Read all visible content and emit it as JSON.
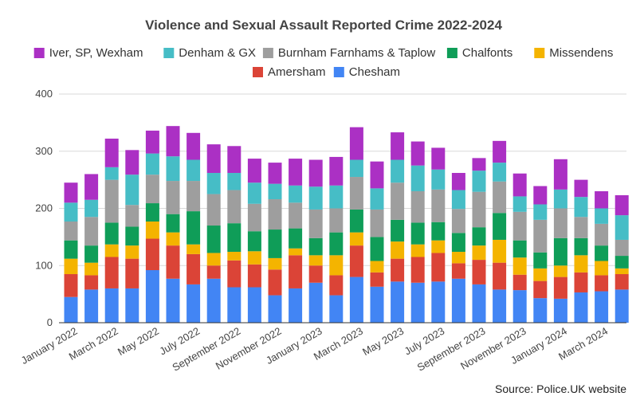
{
  "chart_data": {
    "type": "bar",
    "stacked": true,
    "title": "Violence and Sexual Assault Reported Crime 2022-2024",
    "source": "Source: Police.UK website",
    "ylim": [
      0,
      400
    ],
    "yticks": [
      0,
      100,
      200,
      300,
      400
    ],
    "grid": true,
    "legend_position": "top",
    "categories": [
      "January 2022",
      "February 2022",
      "March 2022",
      "April 2022",
      "May 2022",
      "June 2022",
      "July 2022",
      "August 2022",
      "September 2022",
      "October 2022",
      "November 2022",
      "December 2022",
      "January 2023",
      "February 2023",
      "March 2023",
      "April 2023",
      "May 2023",
      "June 2023",
      "July 2023",
      "August 2023",
      "September 2023",
      "October 2023",
      "November 2023",
      "December 2023",
      "January 2024",
      "February 2024",
      "March 2024",
      "April 2024"
    ],
    "x_tick_labels": [
      "January 2022",
      "",
      "March 2022",
      "",
      "May 2022",
      "",
      "July 2022",
      "",
      "September 2022",
      "",
      "November 2022",
      "",
      "January 2023",
      "",
      "March 2023",
      "",
      "May 2023",
      "",
      "July 2023",
      "",
      "September 2023",
      "",
      "November 2023",
      "",
      "January 2024",
      "",
      "March 2024",
      ""
    ],
    "series": [
      {
        "name": "Chesham",
        "color": "#4285f4",
        "values": [
          45,
          58,
          60,
          60,
          92,
          77,
          67,
          77,
          62,
          62,
          48,
          60,
          70,
          48,
          80,
          63,
          72,
          70,
          72,
          77,
          67,
          58,
          57,
          43,
          42,
          53,
          55,
          58
        ]
      },
      {
        "name": "Amersham",
        "color": "#db4437",
        "values": [
          40,
          25,
          55,
          52,
          55,
          58,
          53,
          23,
          47,
          40,
          45,
          58,
          30,
          35,
          55,
          25,
          40,
          45,
          50,
          27,
          43,
          47,
          27,
          30,
          38,
          35,
          28,
          27
        ]
      },
      {
        "name": "Missendens",
        "color": "#f4b400",
        "values": [
          27,
          22,
          22,
          23,
          30,
          23,
          17,
          22,
          15,
          23,
          20,
          12,
          18,
          35,
          23,
          20,
          30,
          22,
          22,
          20,
          25,
          40,
          30,
          22,
          20,
          30,
          25,
          10
        ]
      },
      {
        "name": "Chalfonts",
        "color": "#0f9d58",
        "values": [
          32,
          30,
          38,
          33,
          32,
          32,
          58,
          48,
          50,
          35,
          50,
          35,
          30,
          40,
          40,
          42,
          38,
          38,
          32,
          33,
          32,
          47,
          30,
          28,
          48,
          30,
          27,
          22
        ]
      },
      {
        "name": "Burnham Farnhams & Taplow",
        "color": "#9e9e9e",
        "values": [
          33,
          50,
          75,
          38,
          50,
          58,
          53,
          55,
          58,
          48,
          53,
          45,
          50,
          42,
          57,
          48,
          65,
          55,
          57,
          42,
          62,
          55,
          50,
          57,
          52,
          37,
          38,
          28
        ]
      },
      {
        "name": "Denham & GX",
        "color": "#46bdc6",
        "values": [
          33,
          30,
          22,
          53,
          37,
          43,
          37,
          37,
          30,
          37,
          27,
          30,
          40,
          40,
          30,
          37,
          40,
          45,
          35,
          33,
          37,
          33,
          27,
          27,
          33,
          35,
          27,
          43
        ]
      },
      {
        "name": "Iver, SP, Wexham",
        "color": "#ab30c4",
        "values": [
          35,
          45,
          50,
          43,
          40,
          53,
          47,
          50,
          47,
          42,
          37,
          47,
          47,
          50,
          57,
          47,
          48,
          42,
          38,
          30,
          22,
          38,
          40,
          32,
          53,
          30,
          30,
          35
        ]
      }
    ]
  }
}
